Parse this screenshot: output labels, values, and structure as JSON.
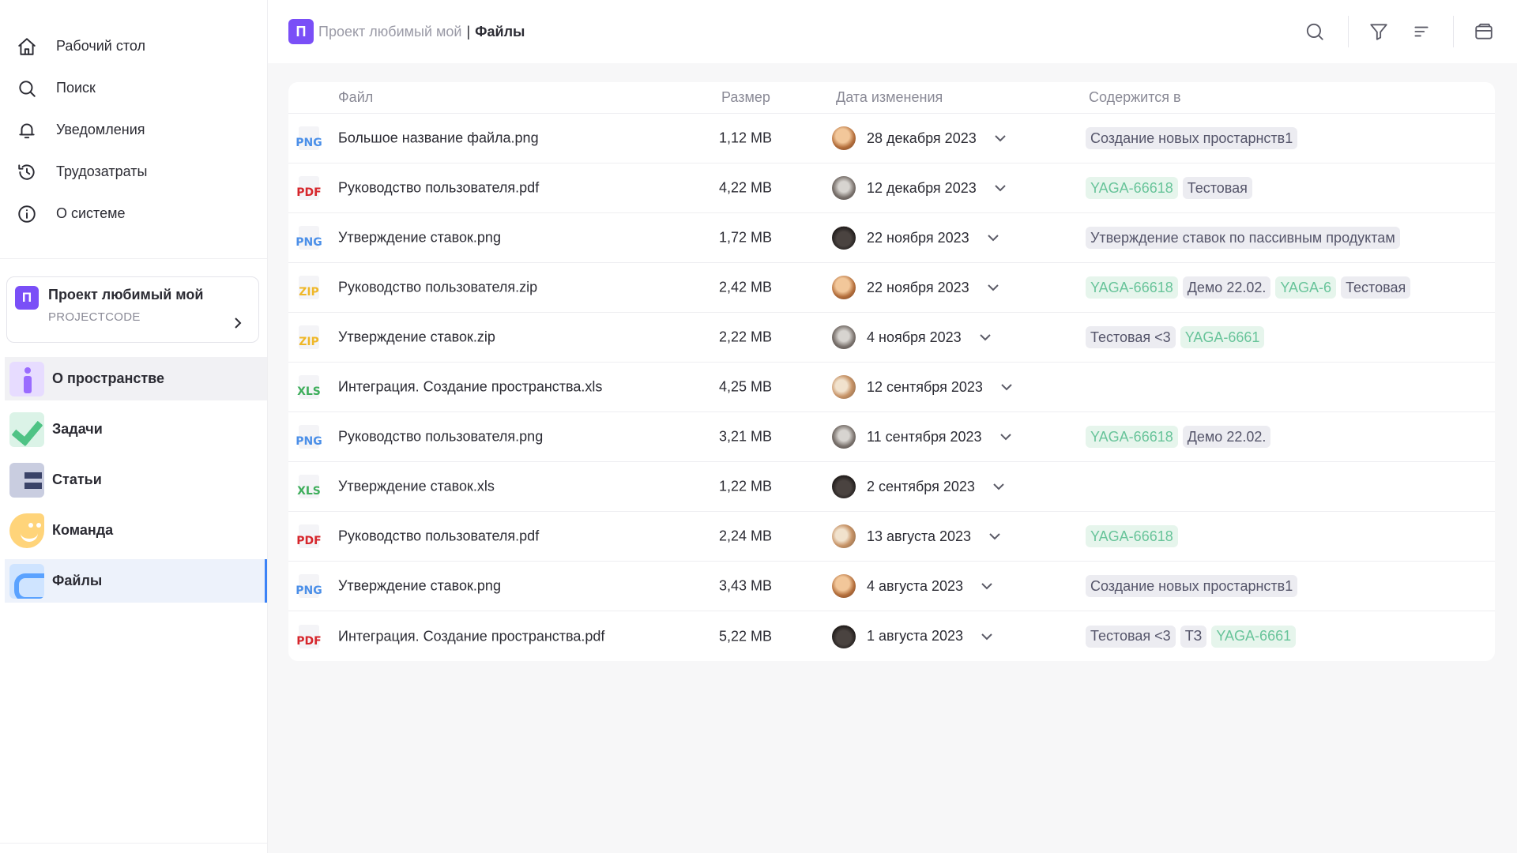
{
  "nav": {
    "desktop": "Рабочий стол",
    "search": "Поиск",
    "notifications": "Уведомления",
    "timesheet": "Трудозатраты",
    "about_system": "О системе"
  },
  "project": {
    "badge": "П",
    "name": "Проект любимый мой",
    "code": "PROJECTCODE"
  },
  "space_nav": {
    "about": "О пространстве",
    "tasks": "Задачи",
    "articles": "Статьи",
    "team": "Команда",
    "files": "Файлы"
  },
  "breadcrumb": {
    "badge": "П",
    "project": "Проект любимый мой",
    "separator": "|",
    "page": "Файлы"
  },
  "table": {
    "headers": {
      "file": "Файл",
      "size": "Размер",
      "date": "Дата изменения",
      "contains": "Содержится в"
    },
    "rows": [
      {
        "type": "PNG",
        "name": "Большое название файла.png",
        "size": "1,12 MB",
        "date": "28 декабря 2023",
        "tags": [
          {
            "text": "Создание новых простарнств1",
            "kind": "gray"
          }
        ]
      },
      {
        "type": "PDF",
        "name": "Руководство пользователя.pdf",
        "size": "4,22 MB",
        "date": "12 декабря 2023",
        "tags": [
          {
            "text": "YAGA-66618",
            "kind": "green"
          },
          {
            "text": "Тестовая",
            "kind": "gray"
          }
        ]
      },
      {
        "type": "PNG",
        "name": "Утверждение ставок.png",
        "size": "1,72 MB",
        "date": "22 ноября 2023",
        "tags": [
          {
            "text": "Утверждение ставок по пассивным продуктам",
            "kind": "gray"
          }
        ]
      },
      {
        "type": "ZIP",
        "name": "Руководство пользователя.zip",
        "size": "2,42 MB",
        "date": "22 ноября 2023",
        "tags": [
          {
            "text": "YAGA-66618",
            "kind": "green"
          },
          {
            "text": "Демо 22.02.",
            "kind": "gray"
          },
          {
            "text": "YAGA-6",
            "kind": "green"
          },
          {
            "text": "Тестовая",
            "kind": "gray"
          }
        ]
      },
      {
        "type": "ZIP",
        "name": "Утверждение ставок.zip",
        "size": "2,22 MB",
        "date": "4 ноября 2023",
        "tags": [
          {
            "text": "Тестовая <3",
            "kind": "gray"
          },
          {
            "text": "YAGA-6661",
            "kind": "green"
          }
        ]
      },
      {
        "type": "XLS",
        "name": "Интеграция. Создание пространства.xls",
        "size": "4,25 MB",
        "date": "12 сентября 2023",
        "tags": []
      },
      {
        "type": "PNG",
        "name": "Руководство пользователя.png",
        "size": "3,21 MB",
        "date": "11 сентября 2023",
        "tags": [
          {
            "text": "YAGA-66618",
            "kind": "green"
          },
          {
            "text": "Демо 22.02.",
            "kind": "gray"
          }
        ]
      },
      {
        "type": "XLS",
        "name": "Утверждение ставок.xls",
        "size": "1,22 MB",
        "date": "2 сентября 2023",
        "tags": []
      },
      {
        "type": "PDF",
        "name": "Руководство пользователя.pdf",
        "size": "2,24 MB",
        "date": "13 августа 2023",
        "tags": [
          {
            "text": "YAGA-66618",
            "kind": "green"
          }
        ]
      },
      {
        "type": "PNG",
        "name": "Утверждение ставок.png",
        "size": "3,43 MB",
        "date": "4 августа 2023",
        "tags": [
          {
            "text": "Создание новых простарнств1",
            "kind": "gray"
          }
        ]
      },
      {
        "type": "PDF",
        "name": "Интеграция. Создание пространства.pdf",
        "size": "5,22 MB",
        "date": "1 августа 2023",
        "tags": [
          {
            "text": "Тестовая <3",
            "kind": "gray"
          },
          {
            "text": "ТЗ",
            "kind": "gray"
          },
          {
            "text": "YAGA-6661",
            "kind": "green"
          }
        ]
      }
    ]
  },
  "colors": {
    "accent": "#7a4ff7",
    "active_indicator": "#3b82f6",
    "tag_green": "#68c49a",
    "tag_gray_bg": "#ececf1"
  },
  "icons": [
    "home-icon",
    "search-icon",
    "bell-icon",
    "history-icon",
    "info-icon",
    "filter-icon",
    "sort-icon",
    "wallet-icon",
    "chevron-right-icon",
    "chevron-down-icon"
  ]
}
